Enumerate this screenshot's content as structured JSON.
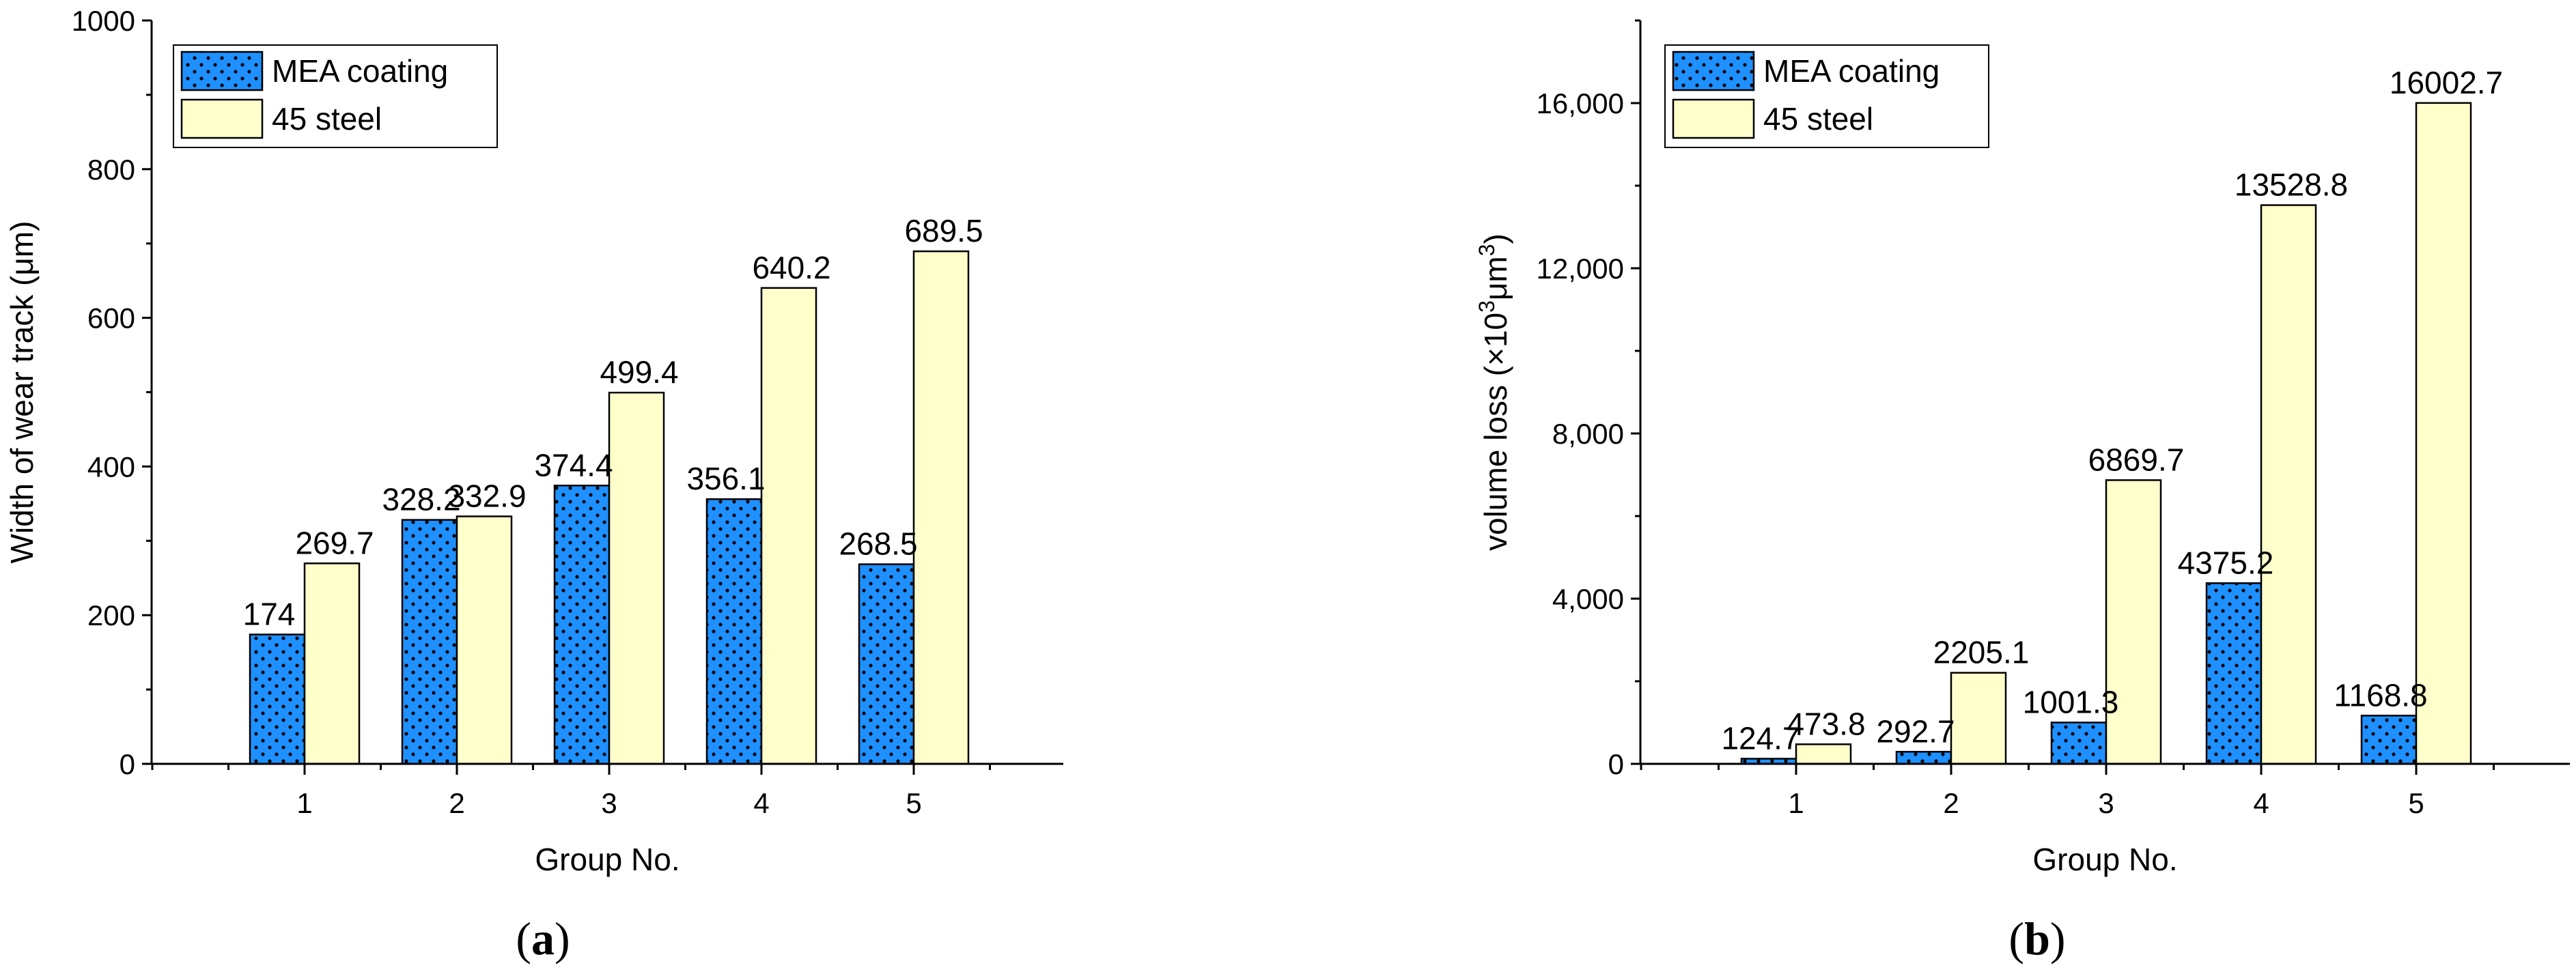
{
  "chart_data": [
    {
      "type": "bar",
      "panel": "(a)",
      "panel_letter": "a",
      "categories": [
        "1",
        "2",
        "3",
        "4",
        "5"
      ],
      "series": [
        {
          "name": "MEA coating",
          "values": [
            174,
            328.2,
            374.4,
            356.1,
            268.5
          ],
          "value_labels": [
            "174",
            "328.2",
            "374.4",
            "356.1",
            "268.5"
          ],
          "fill": "#1e90ff",
          "pattern": "dots"
        },
        {
          "name": "45 steel",
          "values": [
            269.7,
            332.9,
            499.4,
            640.2,
            689.5
          ],
          "value_labels": [
            "269.7",
            "332.9",
            "499.4",
            "640.2",
            "689.5"
          ],
          "fill": "#ffffcc",
          "pattern": "none"
        }
      ],
      "xlabel": "Group No.",
      "ylabel": "Width of wear track (μm)",
      "ylim": [
        0,
        1000
      ],
      "yticks": [
        0,
        200,
        400,
        600,
        800,
        1000
      ],
      "ytick_labels": [
        "0",
        "200",
        "400",
        "600",
        "800",
        "1000"
      ],
      "grid": false,
      "legend_position": "top-left"
    },
    {
      "type": "bar",
      "panel": "(b)",
      "panel_letter": "b",
      "categories": [
        "1",
        "2",
        "3",
        "4",
        "5"
      ],
      "series": [
        {
          "name": "MEA coating",
          "values": [
            124.7,
            292.7,
            1001.3,
            4375.2,
            1168.8
          ],
          "value_labels": [
            "124.7",
            "292.7",
            "1001.3",
            "4375.2",
            "1168.8"
          ],
          "fill": "#1e90ff",
          "pattern": "dots"
        },
        {
          "name": "45 steel",
          "values": [
            473.8,
            2205.1,
            6869.7,
            13528.8,
            16002.7
          ],
          "value_labels": [
            "473.8",
            "2205.1",
            "6869.7",
            "13528.8",
            "16002.7"
          ],
          "fill": "#ffffcc",
          "pattern": "none"
        }
      ],
      "xlabel": "Group No.",
      "ylabel_parts": [
        "volume loss (×10",
        "3",
        "μm",
        "3",
        ")"
      ],
      "ylim": [
        0,
        18000
      ],
      "yticks": [
        0,
        4000,
        8000,
        12000,
        16000
      ],
      "ytick_labels": [
        "0",
        "4,000",
        "8,000",
        "12,000",
        "16,000"
      ],
      "grid": false,
      "legend_position": "top-left"
    }
  ]
}
